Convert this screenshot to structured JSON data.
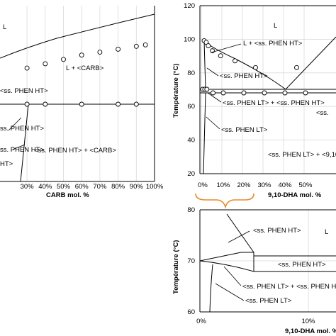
{
  "chart_data": [
    {
      "id": "left",
      "type": "line",
      "xlabel": "CARB mol. %",
      "x_ticks": [
        "30%",
        "40%",
        "50%",
        "60%",
        "70%",
        "80%",
        "90%",
        "100%"
      ],
      "liquidus_points": [
        {
          "x": 30,
          "y": 98
        },
        {
          "x": 40,
          "y": 101
        },
        {
          "x": 50,
          "y": 104
        },
        {
          "x": 60,
          "y": 107
        },
        {
          "x": 70,
          "y": 109
        },
        {
          "x": 80,
          "y": 111
        },
        {
          "x": 90,
          "y": 113
        },
        {
          "x": 95,
          "y": 114
        }
      ],
      "eutectic_points": [
        {
          "x": 30,
          "y": 62
        },
        {
          "x": 40,
          "y": 62
        },
        {
          "x": 60,
          "y": 62
        },
        {
          "x": 80,
          "y": 62
        },
        {
          "x": 90,
          "y": 62
        }
      ],
      "eutectic_temp": 62,
      "regions": [
        "L",
        "L + <CARB>",
        "<ss. PHEN HT>",
        "<ss. PHEN HT> + <CARB>",
        "ss. PHEN HT>",
        "ss. PHEN HT>",
        "HT>"
      ]
    },
    {
      "id": "right",
      "type": "line",
      "ylabel": "Température (°C)",
      "xlabel": "9,10-DHA mol. %",
      "ylim": [
        20,
        120
      ],
      "y_ticks": [
        "20",
        "40",
        "60",
        "80",
        "100",
        "120"
      ],
      "x_ticks": [
        "0%",
        "10%",
        "20%",
        "30%",
        "40%",
        "50%"
      ],
      "liquidus_points": [
        {
          "x": 0,
          "y": 100
        },
        {
          "x": 1,
          "y": 99
        },
        {
          "x": 2,
          "y": 97
        },
        {
          "x": 4,
          "y": 94
        },
        {
          "x": 8,
          "y": 91
        },
        {
          "x": 15,
          "y": 88
        },
        {
          "x": 25,
          "y": 84
        },
        {
          "x": 45,
          "y": 84
        }
      ],
      "eutectic_points": [
        {
          "x": 0,
          "y": 70
        },
        {
          "x": 1,
          "y": 70
        },
        {
          "x": 2,
          "y": 70
        },
        {
          "x": 5,
          "y": 68
        },
        {
          "x": 10,
          "y": 68
        },
        {
          "x": 20,
          "y": 68
        },
        {
          "x": 30,
          "y": 68
        },
        {
          "x": 40,
          "y": 68
        },
        {
          "x": 50,
          "y": 68
        }
      ],
      "eutectic_temp": 68,
      "regions": [
        "L",
        "L + <ss. PHEN HT>",
        "<ss. PHEN HT>",
        "<ss. PHEN LT> + <ss. PHEN HT>",
        "<ss. PHEN LT>",
        "<ss. PHEN LT> + <9,10",
        "<ss."
      ]
    },
    {
      "id": "inset",
      "type": "line",
      "ylabel": "Température (°C)",
      "xlabel": "9,10-DHA mol. %",
      "ylim": [
        60,
        80
      ],
      "y_ticks": [
        "60",
        "70",
        "80"
      ],
      "x_ticks": [
        "0%",
        "10%"
      ],
      "regions": [
        "<ss. PHEN HT>",
        "<ss. PHEN HT>",
        "<ss. PHEN LT> + <ss. PHEN HT>",
        "<ss. PHEN LT>",
        "L"
      ]
    }
  ]
}
